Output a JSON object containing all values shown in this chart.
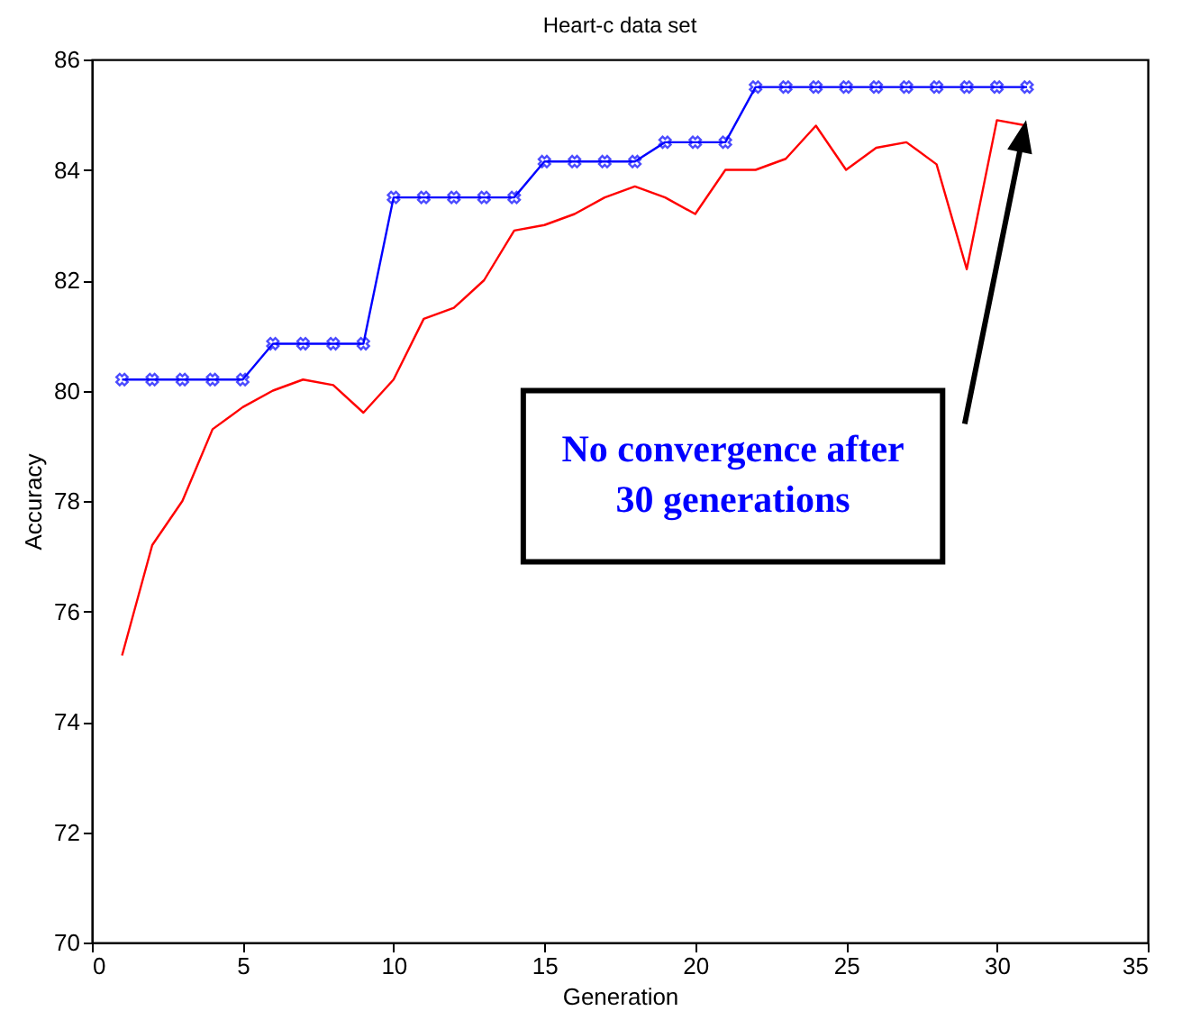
{
  "chart_data": {
    "type": "line",
    "title": "Heart-c data set",
    "xlabel": "Generation",
    "ylabel": "Accuracy",
    "x": [
      1,
      2,
      3,
      4,
      5,
      6,
      7,
      8,
      9,
      10,
      11,
      12,
      13,
      14,
      15,
      16,
      17,
      18,
      19,
      20,
      21,
      22,
      23,
      24,
      25,
      26,
      27,
      28,
      29,
      30,
      31
    ],
    "series": [
      {
        "color": "#0000ff",
        "marker": "cross",
        "values": [
          80.2,
          80.2,
          80.2,
          80.2,
          80.2,
          80.85,
          80.85,
          80.85,
          80.85,
          83.5,
          83.5,
          83.5,
          83.5,
          83.5,
          84.15,
          84.15,
          84.15,
          84.15,
          84.5,
          84.5,
          84.5,
          85.5,
          85.5,
          85.5,
          85.5,
          85.5,
          85.5,
          85.5,
          85.5,
          85.5,
          85.5
        ]
      },
      {
        "color": "#ff0000",
        "marker": "none",
        "values": [
          75.2,
          77.2,
          78.0,
          79.3,
          79.7,
          80.0,
          80.2,
          80.1,
          79.6,
          80.2,
          81.3,
          81.5,
          82.0,
          82.9,
          83.0,
          83.2,
          83.5,
          83.7,
          83.5,
          83.2,
          84.0,
          84.0,
          84.2,
          84.8,
          84.0,
          84.4,
          84.5,
          84.1,
          82.2,
          84.9,
          84.8
        ]
      }
    ],
    "xlim": [
      0,
      35
    ],
    "xticks": [
      0,
      5,
      10,
      15,
      20,
      25,
      30,
      35
    ],
    "ylim": [
      70,
      86
    ],
    "yticks": [
      70,
      72,
      74,
      76,
      78,
      80,
      82,
      84,
      86
    ],
    "grid": false,
    "annotations": [
      "No convergence after\n30 generations"
    ]
  }
}
